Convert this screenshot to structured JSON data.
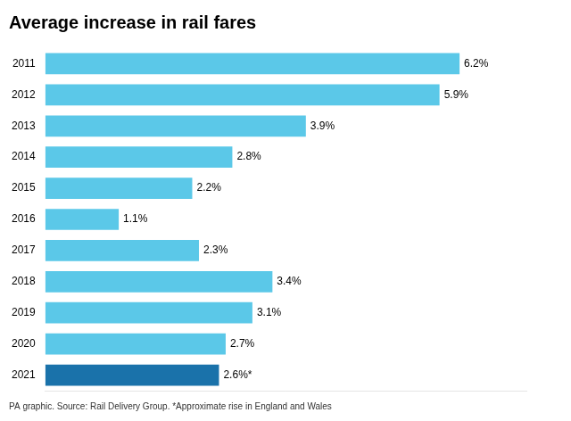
{
  "chart_data": {
    "type": "bar",
    "orientation": "horizontal",
    "title": "Average increase in rail fares",
    "annotations": [
      "PA graphic. Source: Rail Delivery Group. *Approximate rise in England and Wales"
    ],
    "categories": [
      "2011",
      "2012",
      "2013",
      "2014",
      "2015",
      "2016",
      "2017",
      "2018",
      "2019",
      "2020",
      "2021"
    ],
    "values": [
      6.2,
      5.9,
      3.9,
      2.8,
      2.2,
      1.1,
      2.3,
      3.4,
      3.1,
      2.7,
      2.6
    ],
    "value_labels": [
      "6.2%",
      "5.9%",
      "3.9%",
      "2.8%",
      "2.2%",
      "1.1%",
      "2.3%",
      "3.4%",
      "3.1%",
      "2.7%",
      "2.6%*"
    ],
    "colors": [
      "#5BC8E8",
      "#5BC8E8",
      "#5BC8E8",
      "#5BC8E8",
      "#5BC8E8",
      "#5BC8E8",
      "#5BC8E8",
      "#5BC8E8",
      "#5BC8E8",
      "#5BC8E8",
      "#1A72AA"
    ],
    "xlim": [
      0,
      7.2
    ],
    "grid": false,
    "data_labels": true,
    "tick_labels": "y"
  }
}
